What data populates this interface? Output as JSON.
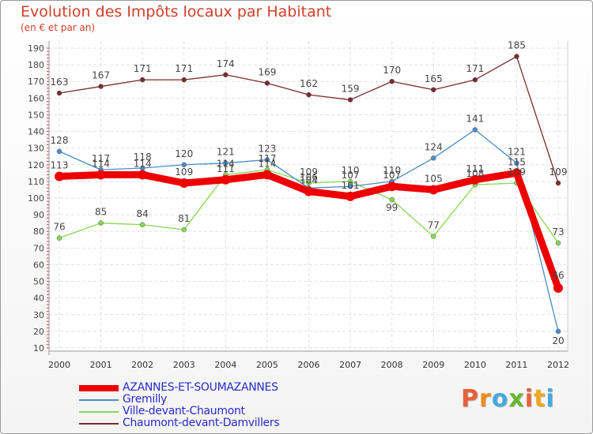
{
  "title": "Evolution des Impôts locaux par Habitant",
  "subtitle": "(en € et par an)",
  "logo": {
    "letters": [
      "P",
      "r",
      "o",
      "x",
      "i",
      "t",
      "i"
    ],
    "colors": [
      "#e8603a",
      "#f08a1c",
      "#45a9e0",
      "#6ab533",
      "#e8603a",
      "#f0a81c",
      "#45a9e0"
    ]
  },
  "chart_data": {
    "type": "line",
    "title": "Evolution des Impôts locaux par Habitant",
    "subtitle": "(en € et par an)",
    "x": [
      2000,
      2001,
      2002,
      2003,
      2004,
      2005,
      2006,
      2007,
      2008,
      2009,
      2010,
      2011,
      2012
    ],
    "ylim": [
      10,
      190
    ],
    "yticks": [
      10,
      20,
      30,
      40,
      50,
      60,
      70,
      80,
      90,
      100,
      110,
      120,
      130,
      140,
      150,
      160,
      170,
      180,
      190
    ],
    "grid": true,
    "series": [
      {
        "name": "AZANNES-ET-SOUMAZANNES",
        "color": "#ee0000",
        "values": [
          113,
          114,
          114,
          109,
          111,
          114,
          104,
          101,
          107,
          105,
          111,
          115,
          46
        ]
      },
      {
        "name": "Gremilly",
        "color": "#4a8cc8",
        "values": [
          128,
          117,
          118,
          120,
          121,
          123,
          106,
          107,
          110,
          124,
          141,
          121,
          20
        ]
      },
      {
        "name": "Ville-devant-Chaumont",
        "color": "#86d852",
        "values": [
          76,
          85,
          84,
          81,
          114,
          117,
          109,
          110,
          99,
          77,
          108,
          109,
          73
        ]
      },
      {
        "name": "Chaumont-devant-Damvillers",
        "color": "#7a2c2c",
        "values": [
          163,
          167,
          171,
          171,
          174,
          169,
          162,
          159,
          170,
          165,
          171,
          185,
          109
        ]
      }
    ]
  }
}
